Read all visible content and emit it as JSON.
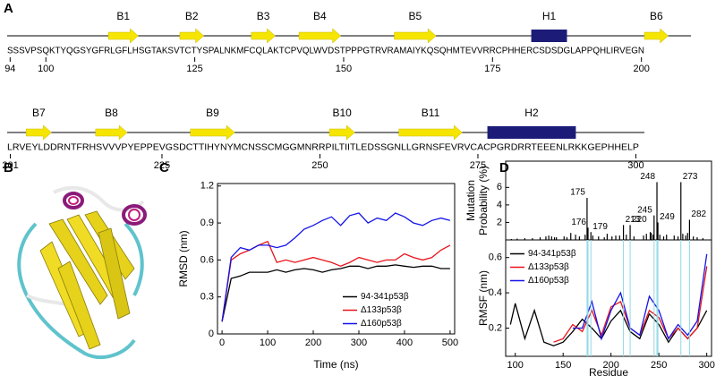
{
  "panel_labels": [
    "A",
    "B",
    "C",
    "D"
  ],
  "sequence_map": {
    "rows": [
      {
        "sequence": "SSSVPSQKTYQGSYGFRLGFLHSGTAKSVTCTYSPALNKMFCQLAKTCPVQLWVDSTPPPGTRVRAMAIYKQSQHMTEVVRRCPHHERCSDSDGLAPPQHLIRVEGN",
        "ticks": [
          94,
          100,
          125,
          150,
          175,
          200
        ],
        "elements": [
          {
            "label": "B1",
            "kind": "strand",
            "start": 111,
            "end": 115
          },
          {
            "label": "B2",
            "kind": "strand",
            "start": 123,
            "end": 126
          },
          {
            "label": "B3",
            "kind": "strand",
            "start": 135,
            "end": 138
          },
          {
            "label": "B4",
            "kind": "strand",
            "start": 143,
            "end": 149
          },
          {
            "label": "B5",
            "kind": "strand",
            "start": 159,
            "end": 165
          },
          {
            "label": "H1",
            "kind": "helix",
            "start": 182,
            "end": 187
          },
          {
            "label": "B6",
            "kind": "strand",
            "start": 201,
            "end": 204
          }
        ]
      },
      {
        "sequence": "LRVEYLDDRNTFRHSVVVPYEPPEVGSDCTTIHYNYMCNSSCMGGMNRRPILTIITLEDSSGNLLGRNSFEVRVCACPGRDRRTEEENLRKKGEPHHELP",
        "ticks": [
          201,
          225,
          250,
          275,
          300
        ],
        "elements": [
          {
            "label": "B7",
            "kind": "strand",
            "start": 204,
            "end": 207
          },
          {
            "label": "B8",
            "kind": "strand",
            "start": 215,
            "end": 219
          },
          {
            "label": "B9",
            "kind": "strand",
            "start": 230,
            "end": 236
          },
          {
            "label": "B10",
            "kind": "strand",
            "start": 252,
            "end": 255
          },
          {
            "label": "B11",
            "kind": "strand",
            "start": 263,
            "end": 272
          },
          {
            "label": "H2",
            "kind": "helix",
            "start": 277,
            "end": 290
          }
        ]
      }
    ]
  },
  "chart_data": [
    {
      "type": "line",
      "xlabel": "Time (ns)",
      "ylabel": "RMSD (nm)",
      "x": [
        0,
        20,
        40,
        60,
        80,
        100,
        120,
        140,
        160,
        180,
        200,
        220,
        240,
        260,
        280,
        300,
        320,
        340,
        360,
        380,
        400,
        420,
        440,
        460,
        480,
        500
      ],
      "series": [
        {
          "name": "94-341p53β",
          "color": "#000000",
          "values": [
            0.1,
            0.45,
            0.47,
            0.5,
            0.5,
            0.5,
            0.52,
            0.5,
            0.52,
            0.53,
            0.52,
            0.5,
            0.52,
            0.53,
            0.55,
            0.55,
            0.53,
            0.55,
            0.55,
            0.56,
            0.55,
            0.54,
            0.55,
            0.55,
            0.53,
            0.53
          ]
        },
        {
          "name": "Δ133p53β",
          "color": "#e8141b",
          "values": [
            0.1,
            0.6,
            0.65,
            0.68,
            0.72,
            0.75,
            0.58,
            0.6,
            0.58,
            0.6,
            0.62,
            0.6,
            0.58,
            0.55,
            0.58,
            0.62,
            0.6,
            0.58,
            0.6,
            0.6,
            0.65,
            0.62,
            0.6,
            0.62,
            0.68,
            0.72
          ]
        },
        {
          "name": "Δ160p53β",
          "color": "#1414e8",
          "values": [
            0.1,
            0.62,
            0.7,
            0.68,
            0.72,
            0.72,
            0.7,
            0.72,
            0.78,
            0.85,
            0.88,
            0.92,
            0.95,
            0.88,
            0.96,
            0.98,
            0.9,
            0.94,
            0.92,
            0.98,
            0.95,
            0.9,
            0.88,
            0.92,
            0.94,
            0.92
          ]
        }
      ],
      "xlim": [
        -10,
        510
      ],
      "xticks": [
        0,
        100,
        200,
        300,
        400,
        500
      ],
      "ylim": [
        0,
        1.22
      ],
      "yticks": [
        0,
        0.3,
        0.6,
        0.9,
        1.2
      ],
      "legend": "lower right"
    },
    {
      "type": "bar",
      "ylabel": [
        "Mutation",
        "Probability (%)"
      ],
      "color": "#000000",
      "x": [
        96,
        102,
        110,
        118,
        126,
        132,
        135,
        138,
        141,
        143,
        151,
        154,
        158,
        163,
        167,
        173,
        175,
        176,
        179,
        181,
        187,
        193,
        196,
        201,
        205,
        209,
        213,
        216,
        220,
        224,
        234,
        237,
        241,
        242,
        244,
        245,
        248,
        249,
        251,
        255,
        258,
        266,
        270,
        273,
        275,
        278,
        280,
        282,
        286,
        290,
        296
      ],
      "values": [
        0.1,
        0.15,
        0.2,
        0.2,
        0.3,
        0.4,
        0.5,
        0.4,
        0.3,
        0.3,
        0.4,
        0.3,
        0.8,
        0.6,
        0.4,
        0.6,
        4.8,
        1.4,
        0.9,
        0.5,
        0.4,
        0.3,
        0.7,
        0.4,
        0.5,
        0.5,
        1.7,
        0.6,
        1.7,
        0.4,
        0.5,
        0.7,
        0.9,
        0.8,
        0.6,
        2.8,
        6.6,
        2.0,
        0.6,
        0.4,
        0.6,
        0.5,
        0.4,
        6.6,
        0.7,
        0.5,
        0.8,
        2.3,
        0.4,
        0.3,
        0.2
      ],
      "xlim": [
        90,
        305
      ],
      "ylim": [
        0,
        9
      ],
      "yticks": [
        2,
        4,
        6
      ],
      "annotations": [
        175,
        176,
        179,
        213,
        220,
        245,
        248,
        249,
        273,
        282
      ],
      "annotation_color": "#8fd8e6"
    },
    {
      "type": "line",
      "xlabel": "Residue",
      "ylabel": "RMSF (nm)",
      "x": [
        95,
        100,
        110,
        120,
        130,
        140,
        150,
        160,
        170,
        180,
        190,
        200,
        210,
        220,
        230,
        240,
        250,
        260,
        270,
        280,
        290,
        300
      ],
      "series": [
        {
          "name": "94-341p53β",
          "color": "#000000",
          "values": [
            0.22,
            0.34,
            0.14,
            0.3,
            0.12,
            0.1,
            0.12,
            0.18,
            0.25,
            0.2,
            0.14,
            0.24,
            0.3,
            0.18,
            0.14,
            0.28,
            0.22,
            0.12,
            0.2,
            0.14,
            0.2,
            0.3
          ]
        },
        {
          "name": "Δ133p53β",
          "color": "#e8141b",
          "values": [
            null,
            null,
            null,
            null,
            null,
            0.12,
            0.14,
            0.22,
            0.18,
            0.3,
            0.16,
            0.32,
            0.35,
            0.2,
            0.16,
            0.3,
            0.26,
            0.14,
            0.2,
            0.14,
            0.2,
            0.55
          ]
        },
        {
          "name": "Δ160p53β",
          "color": "#1414e8",
          "values": [
            null,
            null,
            null,
            null,
            null,
            null,
            null,
            0.2,
            0.2,
            0.35,
            0.14,
            0.3,
            0.4,
            0.2,
            0.16,
            0.38,
            0.3,
            0.14,
            0.22,
            0.16,
            0.24,
            0.62
          ]
        }
      ],
      "xlim": [
        90,
        305
      ],
      "xticks": [
        100,
        150,
        200,
        250,
        300
      ],
      "ylim": [
        0.04,
        0.7
      ],
      "yticks": [
        0.2,
        0.4,
        0.6
      ],
      "legend": "upper left"
    }
  ]
}
